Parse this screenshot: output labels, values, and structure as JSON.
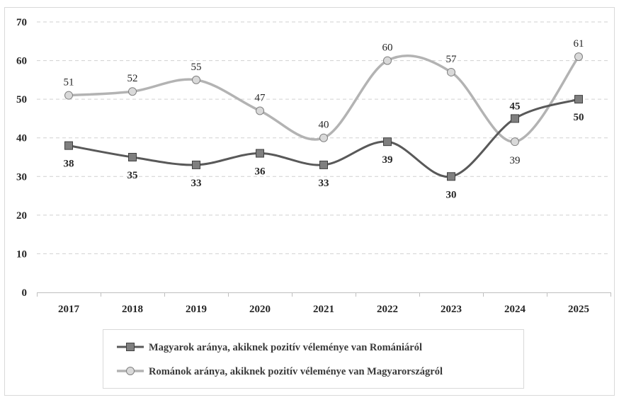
{
  "chart_data": {
    "type": "line",
    "categories": [
      "2017",
      "2018",
      "2019",
      "2020",
      "2021",
      "2022",
      "2023",
      "2024",
      "2025"
    ],
    "ylim": [
      0,
      70
    ],
    "yticks": [
      0,
      10,
      20,
      30,
      40,
      50,
      60,
      70
    ],
    "grid": true,
    "legend_position": "bottom",
    "series": [
      {
        "name": "Magyarok aránya, akiknek pozitív véleménye van Romániáról",
        "values": [
          38,
          35,
          33,
          36,
          33,
          39,
          30,
          45,
          50
        ],
        "marker": "square",
        "color": "#595959",
        "marker_color": "#7f7f7f"
      },
      {
        "name": "Románok aránya, akiknek pozitív véleménye van Magyarországról",
        "values": [
          51,
          52,
          55,
          47,
          40,
          60,
          57,
          39,
          61
        ],
        "marker": "circle",
        "color": "#b3b3b3",
        "marker_color": "#d9d9d9"
      }
    ]
  }
}
